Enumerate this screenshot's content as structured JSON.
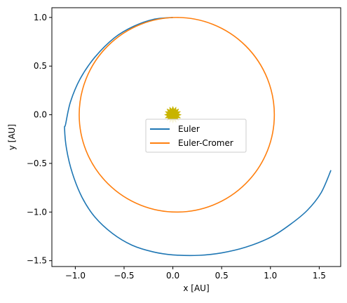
{
  "chart_data": {
    "type": "line",
    "title": "",
    "xlabel": "x [AU]",
    "ylabel": "y [AU]",
    "xlim": [
      -1.24,
      1.72
    ],
    "ylim": [
      -1.56,
      1.1
    ],
    "xticks": [
      -1.0,
      -0.5,
      0.0,
      0.5,
      1.0,
      1.5
    ],
    "yticks": [
      -1.5,
      -1.0,
      -0.5,
      0.0,
      0.5,
      1.0
    ],
    "xtick_labels": [
      "−1.0",
      "−0.5",
      "0.0",
      "0.5",
      "1.0",
      "1.5"
    ],
    "ytick_labels": [
      "−1.5",
      "−1.0",
      "−0.5",
      "0.0",
      "0.5",
      "1.0"
    ],
    "grid": false,
    "legend_position": "center",
    "series": [
      {
        "name": "Euler",
        "color": "#1f77b4",
        "x": [
          0.0,
          -0.2,
          -0.4,
          -0.6,
          -0.8,
          -0.95,
          -1.05,
          -1.1,
          -1.11,
          -1.09,
          -1.03,
          -0.93,
          -0.8,
          -0.62,
          -0.42,
          -0.2,
          0.0,
          0.27,
          0.5,
          0.75,
          1.0,
          1.2,
          1.38,
          1.52,
          1.62
        ],
        "y": [
          1.0,
          0.98,
          0.91,
          0.79,
          0.59,
          0.37,
          0.13,
          -0.1,
          -0.14,
          -0.35,
          -0.6,
          -0.85,
          -1.05,
          -1.22,
          -1.34,
          -1.41,
          -1.44,
          -1.445,
          -1.42,
          -1.36,
          -1.26,
          -1.13,
          -0.98,
          -0.8,
          -0.57
        ]
      },
      {
        "name": "Euler-Cromer",
        "color": "#ff7f0e",
        "center": [
          0.04,
          0.0
        ],
        "radius": 1.0
      }
    ],
    "sun": {
      "x": 0.0,
      "y": 0.0,
      "color": "#c8b400"
    }
  }
}
